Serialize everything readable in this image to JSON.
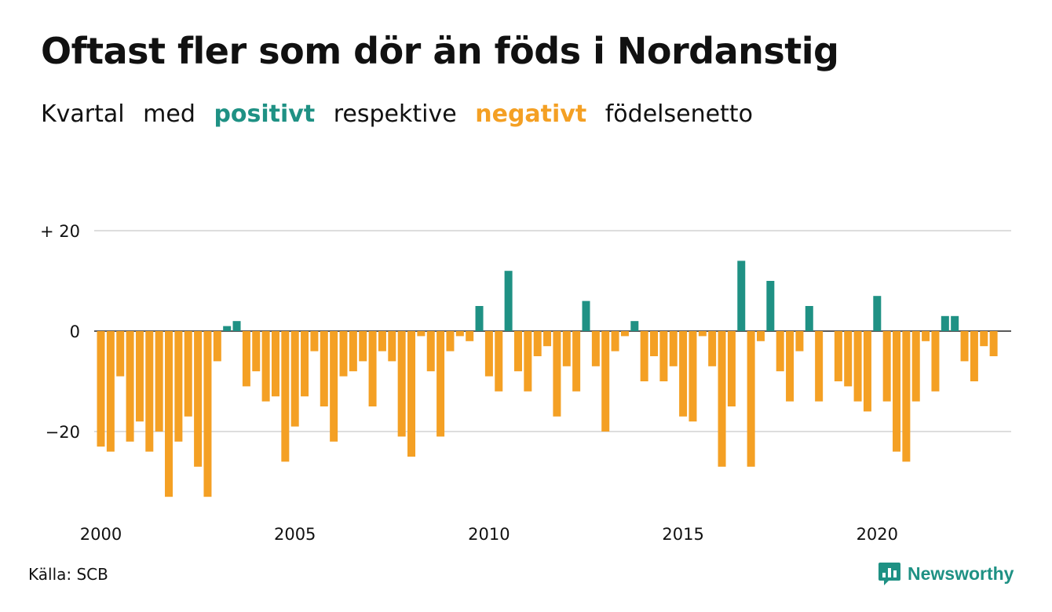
{
  "title": "Oftast fler som dör än föds i Nordanstig",
  "subtitle": {
    "part1": "Kvartal med",
    "positive_word": "positivt",
    "part2": "respektive",
    "negative_word": "negativt",
    "part3": "födelsenetto"
  },
  "colors": {
    "positive": "#1f9184",
    "negative": "#f4a024",
    "grid": "#dddddd"
  },
  "source": "Källa: SCB",
  "brand": {
    "name": "Newsworthy",
    "icon": "newsworthy-logo-icon"
  },
  "chart_data": {
    "type": "bar",
    "title": "Oftast fler som dör än föds i Nordanstig",
    "xlabel": "",
    "ylabel": "",
    "ylim": [
      -36,
      20
    ],
    "yticks": [
      {
        "value": 20,
        "label": "+ 20"
      },
      {
        "value": 0,
        "label": "0"
      },
      {
        "value": -20,
        "label": "−20"
      }
    ],
    "xticks": [
      "2000",
      "2005",
      "2010",
      "2015",
      "2020"
    ],
    "grid": true,
    "categories": [
      "2000 Q1",
      "2000 Q2",
      "2000 Q3",
      "2000 Q4",
      "2001 Q1",
      "2001 Q2",
      "2001 Q3",
      "2001 Q4",
      "2002 Q1",
      "2002 Q2",
      "2002 Q3",
      "2002 Q4",
      "2003 Q1",
      "2003 Q2",
      "2003 Q3",
      "2003 Q4",
      "2004 Q1",
      "2004 Q2",
      "2004 Q3",
      "2004 Q4",
      "2005 Q1",
      "2005 Q2",
      "2005 Q3",
      "2005 Q4",
      "2006 Q1",
      "2006 Q2",
      "2006 Q3",
      "2006 Q4",
      "2007 Q1",
      "2007 Q2",
      "2007 Q3",
      "2007 Q4",
      "2008 Q1",
      "2008 Q2",
      "2008 Q3",
      "2008 Q4",
      "2009 Q1",
      "2009 Q2",
      "2009 Q3",
      "2009 Q4",
      "2010 Q1",
      "2010 Q2",
      "2010 Q3",
      "2010 Q4",
      "2011 Q1",
      "2011 Q2",
      "2011 Q3",
      "2011 Q4",
      "2012 Q1",
      "2012 Q2",
      "2012 Q3",
      "2012 Q4",
      "2013 Q1",
      "2013 Q2",
      "2013 Q3",
      "2013 Q4",
      "2014 Q1",
      "2014 Q2",
      "2014 Q3",
      "2014 Q4",
      "2015 Q1",
      "2015 Q2",
      "2015 Q3",
      "2015 Q4",
      "2016 Q1",
      "2016 Q2",
      "2016 Q3",
      "2016 Q4",
      "2017 Q1",
      "2017 Q2",
      "2017 Q3",
      "2017 Q4",
      "2018 Q1",
      "2018 Q2",
      "2018 Q3",
      "2018 Q4",
      "2019 Q1",
      "2019 Q2",
      "2019 Q3",
      "2019 Q4",
      "2020 Q1",
      "2020 Q2",
      "2020 Q3",
      "2020 Q4",
      "2021 Q1",
      "2021 Q2",
      "2021 Q3",
      "2021 Q4",
      "2022 Q1",
      "2022 Q2",
      "2022 Q3",
      "2022 Q4",
      "2023 Q1",
      "2023 Q2",
      "2023 Q3",
      "2023 Q4"
    ],
    "values": [
      -23,
      -24,
      -9,
      -22,
      -18,
      -24,
      -20,
      -33,
      -22,
      -17,
      -27,
      -33,
      -6,
      1,
      2,
      -11,
      -8,
      -14,
      -13,
      -26,
      -19,
      -13,
      -4,
      -15,
      -22,
      -9,
      -8,
      -6,
      -15,
      -4,
      -6,
      -21,
      -25,
      -1,
      -8,
      -21,
      -4,
      -1,
      -2,
      5,
      -9,
      -12,
      12,
      -8,
      -12,
      -5,
      -3,
      -17,
      -7,
      -12,
      6,
      -7,
      -20,
      -4,
      -1,
      2,
      -10,
      -5,
      -10,
      -7,
      -17,
      -18,
      -1,
      -7,
      -27,
      -15,
      14,
      -27,
      -2,
      10,
      -8,
      -14,
      -4,
      5,
      -14,
      0,
      -10,
      -11,
      -14,
      -16,
      7,
      -14,
      -24,
      -26,
      -14,
      -2,
      -12,
      3,
      3,
      -6,
      -10,
      -3,
      -5,
      0,
      0,
      0
    ]
  }
}
